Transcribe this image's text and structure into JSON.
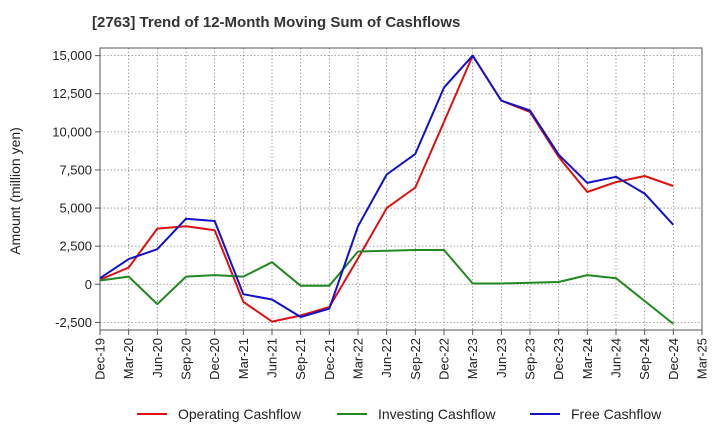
{
  "chart_data": {
    "type": "line",
    "title": "[2763]  Trend of 12-Month Moving Sum of Cashflows",
    "ylabel": "Amount (million yen)",
    "xlabel": "",
    "categories": [
      "Dec-19",
      "Mar-20",
      "Jun-20",
      "Sep-20",
      "Dec-20",
      "Mar-21",
      "Jun-21",
      "Sep-21",
      "Dec-21",
      "Mar-22",
      "Jun-22",
      "Sep-22",
      "Dec-22",
      "Mar-23",
      "Jun-23",
      "Sep-23",
      "Dec-23",
      "Mar-24",
      "Jun-24",
      "Sep-24",
      "Dec-24",
      "Mar-25"
    ],
    "yticks": [
      -2500,
      0,
      2500,
      5000,
      7500,
      10000,
      12500,
      15000
    ],
    "ytick_labels": [
      "-2,500",
      "0",
      "2,500",
      "5,000",
      "7,500",
      "10,000",
      "12,500",
      "15,000"
    ],
    "ylim": [
      -3000,
      15500
    ],
    "grid": true,
    "legend_position": "bottom",
    "series": [
      {
        "name": "Operating Cashflow",
        "color": "#dd1111",
        "values": [
          300,
          1100,
          3650,
          3800,
          3550,
          -1150,
          -2450,
          -2050,
          -1500,
          1700,
          5000,
          6350,
          10650,
          15000,
          12050,
          11300,
          8350,
          6050,
          6700,
          7100,
          6450,
          null
        ]
      },
      {
        "name": "Investing Cashflow",
        "color": "#228822",
        "values": [
          250,
          500,
          -1300,
          500,
          600,
          500,
          1450,
          -100,
          -100,
          2150,
          2200,
          2250,
          2250,
          50,
          50,
          100,
          150,
          600,
          400,
          -1100,
          -2600,
          null
        ]
      },
      {
        "name": "Free Cashflow",
        "color": "#1111cc",
        "values": [
          400,
          1650,
          2300,
          4300,
          4150,
          -650,
          -1000,
          -2150,
          -1600,
          3800,
          7200,
          8550,
          12900,
          15000,
          12050,
          11400,
          8500,
          6650,
          7050,
          5950,
          3900,
          null
        ]
      }
    ]
  }
}
